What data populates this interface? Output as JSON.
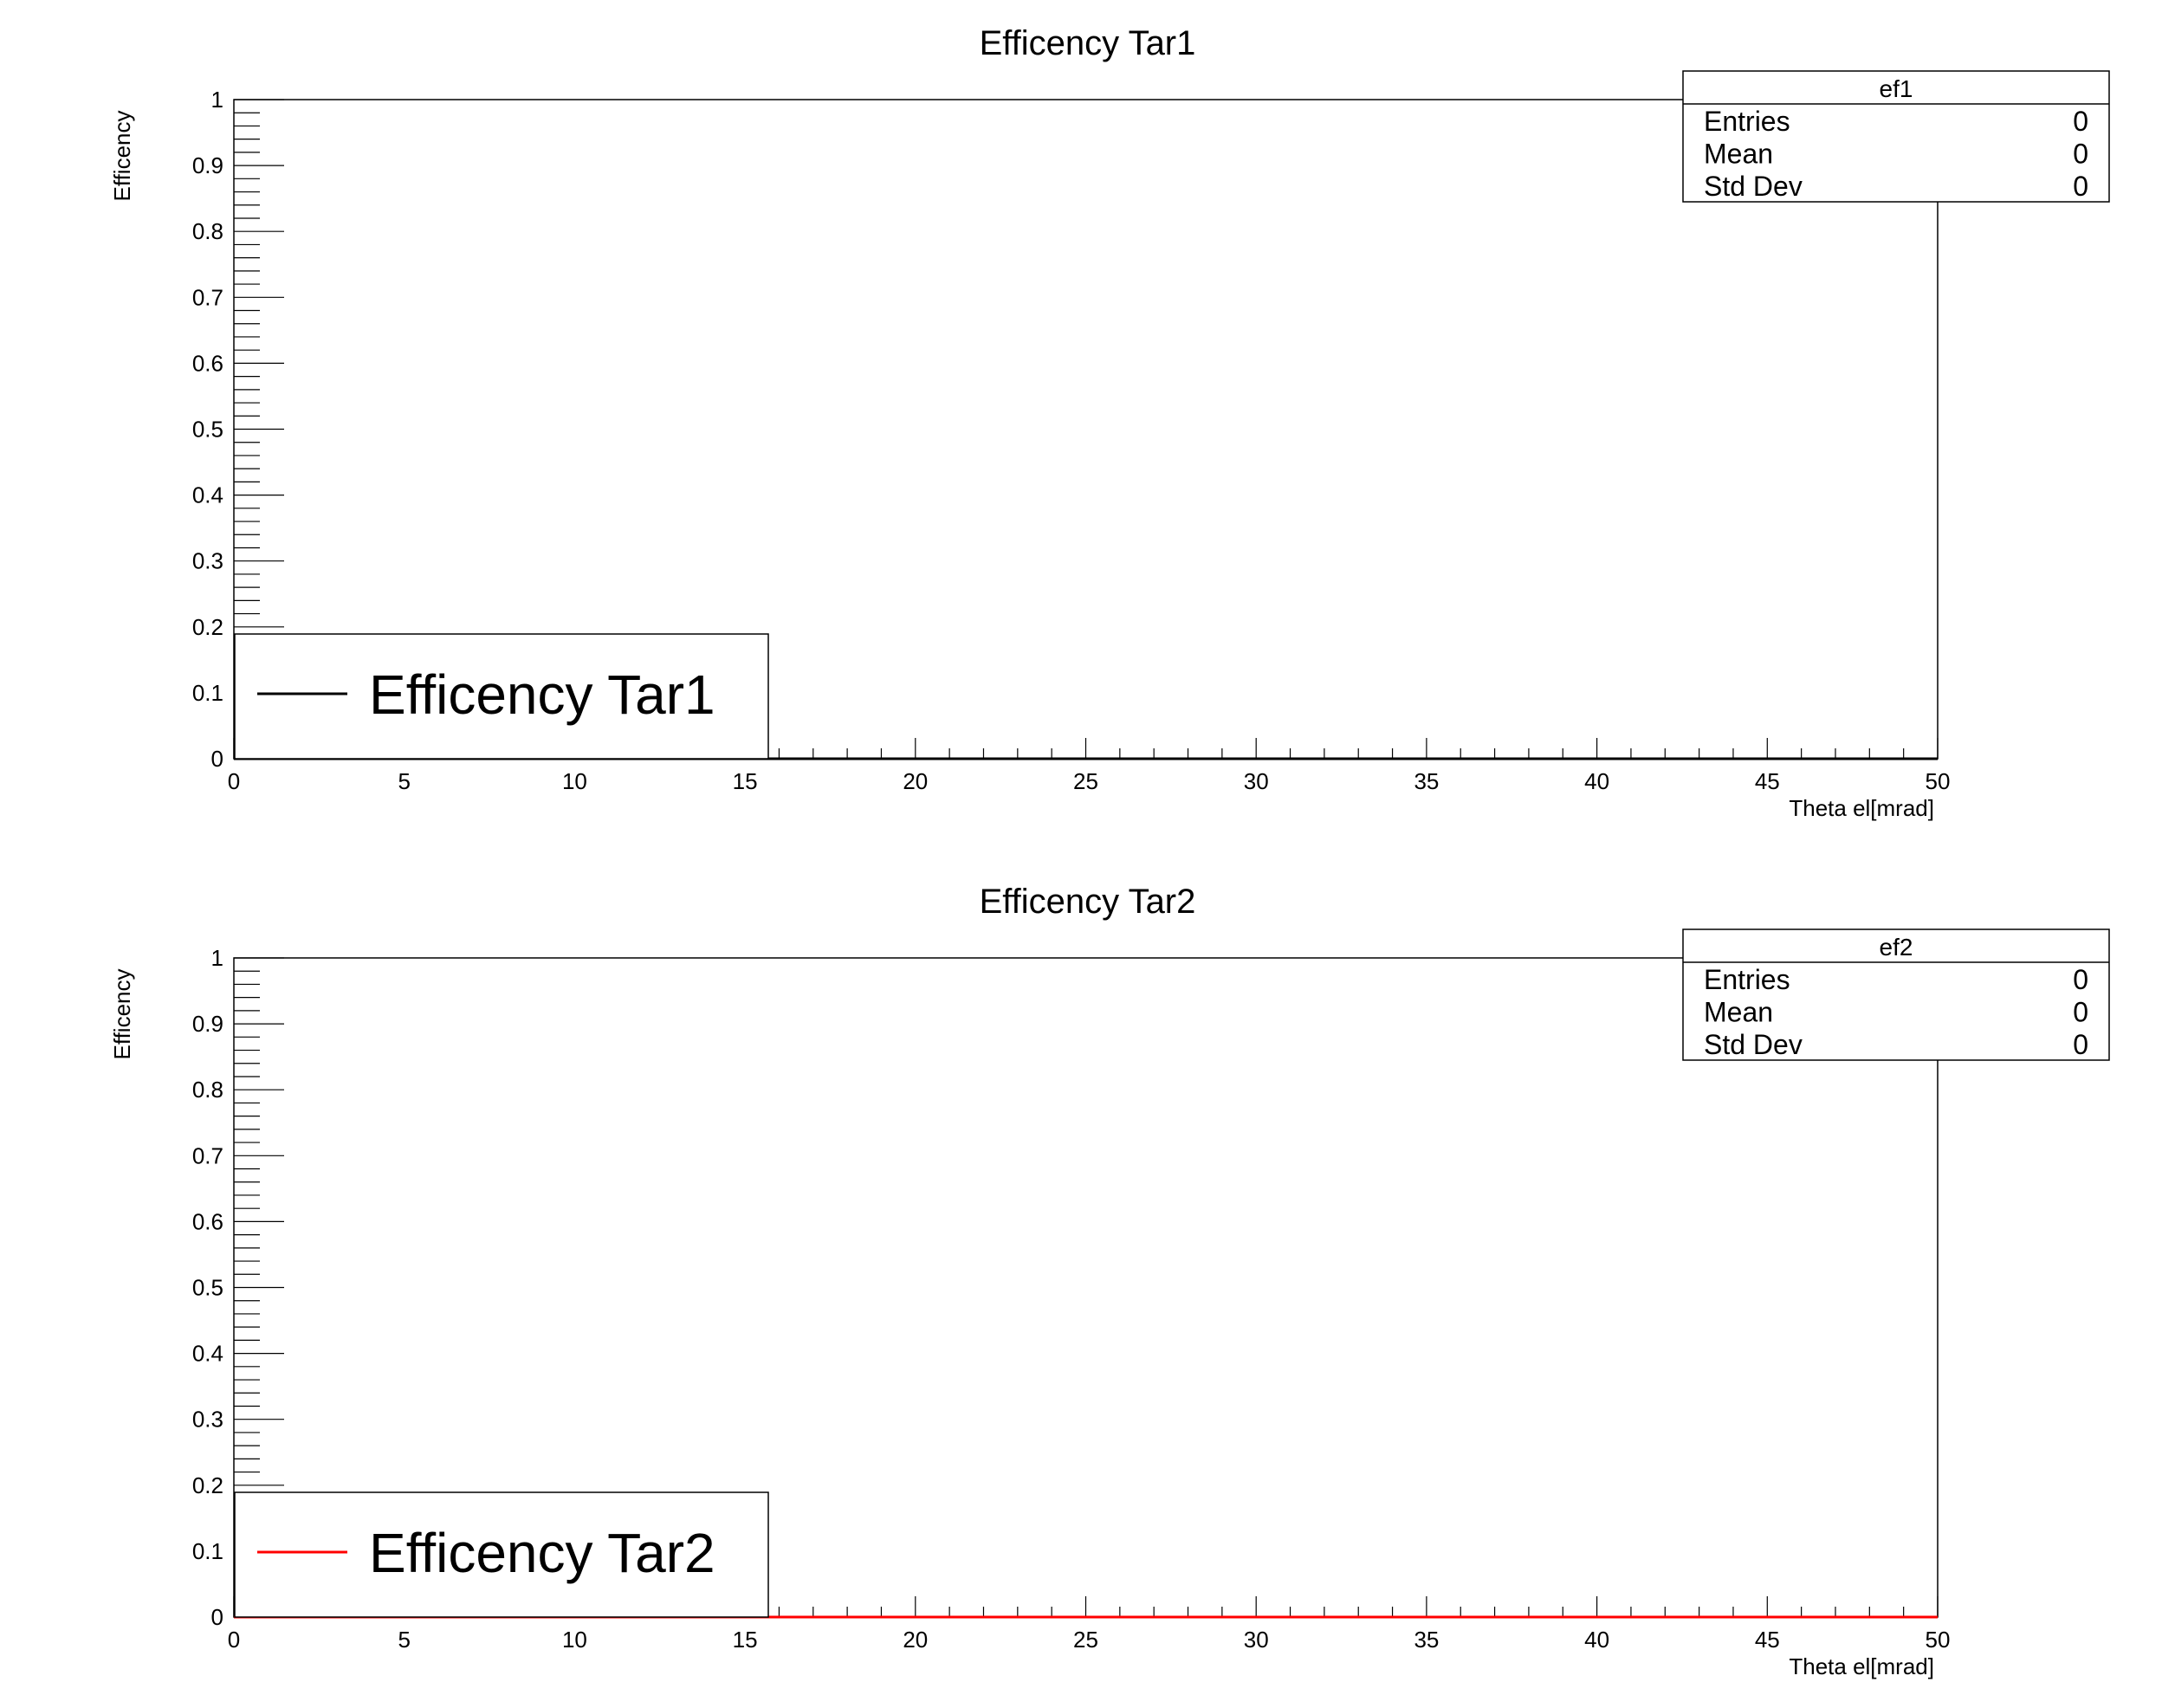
{
  "chart_data": [
    {
      "type": "line",
      "title": "Efficency Tar1",
      "xlabel": "Theta el[mrad]",
      "ylabel": "Efficency",
      "xlim": [
        0,
        50
      ],
      "ylim": [
        0,
        1
      ],
      "x_ticks": [
        0,
        5,
        10,
        15,
        20,
        25,
        30,
        35,
        40,
        45,
        50
      ],
      "y_ticks": [
        0,
        0.1,
        0.2,
        0.3,
        0.4,
        0.5,
        0.6,
        0.7,
        0.8,
        0.9,
        1
      ],
      "grid": false,
      "series": [
        {
          "name": "Efficency Tar1",
          "color": "#000000",
          "x": [
            0,
            50
          ],
          "y": [
            0,
            0
          ]
        }
      ],
      "legend": {
        "placement": "bottom-left"
      },
      "stats": {
        "name": "ef1",
        "rows": [
          {
            "label": "Entries",
            "value": "0"
          },
          {
            "label": "Mean",
            "value": "0"
          },
          {
            "label": "Std Dev",
            "value": "0"
          }
        ]
      }
    },
    {
      "type": "line",
      "title": "Efficency Tar2",
      "xlabel": "Theta el[mrad]",
      "ylabel": "Efficency",
      "xlim": [
        0,
        50
      ],
      "ylim": [
        0,
        1
      ],
      "x_ticks": [
        0,
        5,
        10,
        15,
        20,
        25,
        30,
        35,
        40,
        45,
        50
      ],
      "y_ticks": [
        0,
        0.1,
        0.2,
        0.3,
        0.4,
        0.5,
        0.6,
        0.7,
        0.8,
        0.9,
        1
      ],
      "grid": false,
      "series": [
        {
          "name": "Efficency Tar2",
          "color": "#ff0000",
          "x": [
            0,
            50
          ],
          "y": [
            0,
            0
          ]
        }
      ],
      "legend": {
        "placement": "bottom-left"
      },
      "stats": {
        "name": "ef2",
        "rows": [
          {
            "label": "Entries",
            "value": "0"
          },
          {
            "label": "Mean",
            "value": "0"
          },
          {
            "label": "Std Dev",
            "value": "0"
          }
        ]
      }
    }
  ]
}
